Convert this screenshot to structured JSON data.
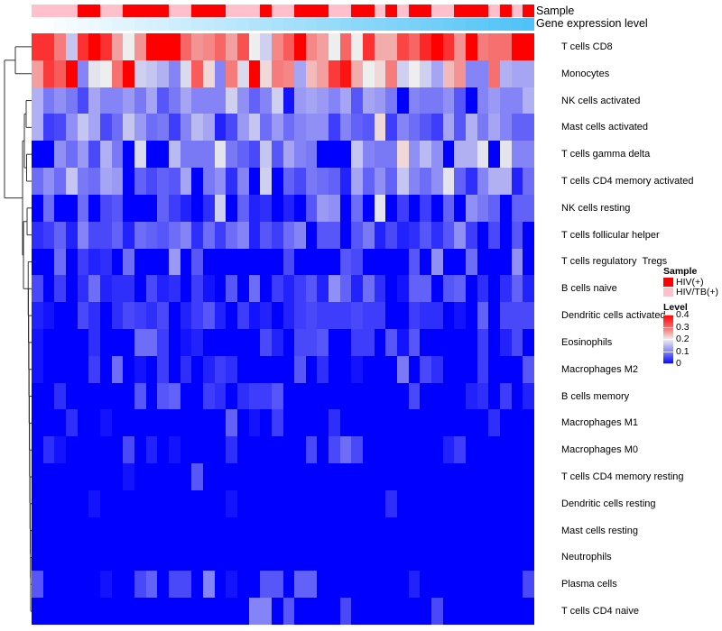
{
  "chart_data": {
    "type": "heatmap",
    "title": "",
    "annotation_labels": {
      "sample": "Sample",
      "gene_expression": "Gene expression level"
    },
    "samples": [
      "HIV/TB(+)",
      "HIV/TB(+)",
      "HIV/TB(+)",
      "HIV/TB(+)",
      "HIV(+)",
      "HIV(+)",
      "HIV/TB(+)",
      "HIV/TB(+)",
      "HIV(+)",
      "HIV(+)",
      "HIV(+)",
      "HIV(+)",
      "HIV/TB(+)",
      "HIV/TB(+)",
      "HIV(+)",
      "HIV(+)",
      "HIV(+)",
      "HIV/TB(+)",
      "HIV/TB(+)",
      "HIV/TB(+)",
      "HIV(+)",
      "HIV/TB(+)",
      "HIV/TB(+)",
      "HIV(+)",
      "HIV(+)",
      "HIV(+)",
      "HIV/TB(+)",
      "HIV/TB(+)",
      "HIV(+)",
      "HIV(+)",
      "HIV/TB(+)",
      "HIV(+)",
      "HIV/TB(+)",
      "HIV(+)",
      "HIV(+)",
      "HIV/TB(+)",
      "HIV/TB(+)",
      "HIV(+)",
      "HIV(+)",
      "HIV(+)",
      "HIV/TB(+)",
      "HIV(+)",
      "HIV/TB(+)",
      "HIV(+)"
    ],
    "gene_expression_level_relative": "increasing from low (white) at left to high (sky blue) at right",
    "rows": [
      "T cells CD8",
      "Monocytes",
      "NK cells activated",
      "Mast cells activated",
      "T cells gamma delta",
      "T cells CD4 memory activated",
      "NK cells resting",
      "T cells follicular helper",
      "T cells regulatory  Tregs",
      "B cells naive",
      "Dendritic cells activated",
      "Eosinophils",
      "Macrophages M2",
      "B cells memory",
      "Macrophages M1",
      "Macrophages M0",
      "T cells CD4 memory resting",
      "Dendritic cells resting",
      "Mast cells resting",
      "Neutrophils",
      "Plasma cells",
      "T cells CD4 naive"
    ],
    "values": [
      [
        0.35,
        0.35,
        0.28,
        0.16,
        0.35,
        0.42,
        0.35,
        0.25,
        0.2,
        0.26,
        0.45,
        0.45,
        0.42,
        0.3,
        0.26,
        0.27,
        0.3,
        0.25,
        0.32,
        0.2,
        0.17,
        0.27,
        0.31,
        0.45,
        0.27,
        0.25,
        0.2,
        0.3,
        0.2,
        0.35,
        0.24,
        0.24,
        0.33,
        0.3,
        0.36,
        0.45,
        0.35,
        0.26,
        0.45,
        0.28,
        0.29,
        0.29,
        0.45,
        0.45
      ],
      [
        0.25,
        0.34,
        0.31,
        0.45,
        0.1,
        0.19,
        0.2,
        0.29,
        0.45,
        0.17,
        0.16,
        0.14,
        0.1,
        0.18,
        0.31,
        0.21,
        0.1,
        0.28,
        0.18,
        0.45,
        0.21,
        0.28,
        0.27,
        0.13,
        0.23,
        0.25,
        0.34,
        0.38,
        0.24,
        0.2,
        0.21,
        0.28,
        0.17,
        0.2,
        0.17,
        0.13,
        0.23,
        0.26,
        0.1,
        0.1,
        0.29,
        0.14,
        0.13,
        0.13
      ],
      [
        0.14,
        0.09,
        0.11,
        0.09,
        0.05,
        0.13,
        0.1,
        0.1,
        0.12,
        0.09,
        0.13,
        0.06,
        0.09,
        0.13,
        0.1,
        0.1,
        0.1,
        0.17,
        0.11,
        0.07,
        0.1,
        0.17,
        0.01,
        0.12,
        0.13,
        0.12,
        0.1,
        0.13,
        0.06,
        0.13,
        0.12,
        0.09,
        0.0,
        0.1,
        0.09,
        0.09,
        0.11,
        0.06,
        0.0,
        0.1,
        0.12,
        0.1,
        0.1,
        0.14
      ],
      [
        0.14,
        0.04,
        0.05,
        0.11,
        0.16,
        0.13,
        0.05,
        0.08,
        0.16,
        0.12,
        0.08,
        0.09,
        0.04,
        0.1,
        0.15,
        0.13,
        0.02,
        0.05,
        0.12,
        0.16,
        0.08,
        0.12,
        0.08,
        0.1,
        0.11,
        0.11,
        0.04,
        0.1,
        0.07,
        0.06,
        0.21,
        0.04,
        0.1,
        0.08,
        0.06,
        0.04,
        0.13,
        0.06,
        0.14,
        0.09,
        0.13,
        0.1,
        0.07,
        0.07
      ],
      [
        0,
        0,
        0.11,
        0.08,
        0.12,
        0.05,
        0.14,
        0.09,
        0,
        0.18,
        0,
        0,
        0.15,
        0.09,
        0.09,
        0.09,
        0.19,
        0.09,
        0.07,
        0.05,
        0.16,
        0.06,
        0.13,
        0.1,
        0.09,
        0,
        0,
        0,
        0.16,
        0.1,
        0.09,
        0.09,
        0.21,
        0.11,
        0.15,
        0.11,
        0,
        0.14,
        0.14,
        0.19,
        0,
        0.19,
        0.1,
        0.1
      ],
      [
        0.08,
        0.11,
        0.08,
        0.16,
        0.09,
        0.08,
        0.13,
        0.12,
        0,
        0.07,
        0.05,
        0.07,
        0.06,
        0.13,
        0,
        0.09,
        0.11,
        0.03,
        0.1,
        0,
        0.17,
        0,
        0.07,
        0.05,
        0.09,
        0.08,
        0.07,
        0.02,
        0.13,
        0.07,
        0.11,
        0.07,
        0.16,
        0.1,
        0.08,
        0.11,
        0.19,
        0.07,
        0.03,
        0.1,
        0.14,
        0.14,
        0.02,
        0.08
      ],
      [
        0,
        0.08,
        0,
        0,
        0.08,
        0,
        0.05,
        0.06,
        0,
        0,
        0,
        0.07,
        0.04,
        0.02,
        0,
        0.03,
        0.17,
        0,
        0.07,
        0.02,
        0.03,
        0,
        0.02,
        0,
        0.06,
        0.12,
        0.11,
        0,
        0.08,
        0,
        0.19,
        0,
        0.04,
        0,
        0.04,
        0,
        0.07,
        0,
        0.11,
        0.09,
        0.07,
        0,
        0.07,
        0.07
      ],
      [
        0.03,
        0.04,
        0.07,
        0.02,
        0.1,
        0.05,
        0.05,
        0.07,
        0.02,
        0.08,
        0.07,
        0.06,
        0.08,
        0.1,
        0.03,
        0.08,
        0.04,
        0.08,
        0.1,
        0.02,
        0.06,
        0.04,
        0.08,
        0.1,
        0,
        0.06,
        0.06,
        0,
        0.06,
        0.09,
        0.02,
        0.05,
        0.02,
        0.03,
        0.06,
        0.03,
        0.06,
        0.11,
        0.04,
        0,
        0.05,
        0,
        0.06,
        0
      ],
      [
        0,
        0,
        0.08,
        0,
        0.04,
        0.02,
        0.03,
        0,
        0.08,
        0,
        0,
        0,
        0.12,
        0,
        0.06,
        0,
        0,
        0,
        0,
        0,
        0,
        0,
        0.05,
        0,
        0,
        0,
        0,
        0.06,
        0.05,
        0,
        0,
        0,
        0,
        0.06,
        0,
        0.11,
        0,
        0,
        0.08,
        0,
        0,
        0,
        0.11,
        0
      ],
      [
        0.05,
        0,
        0.04,
        0,
        0.03,
        0.08,
        0.02,
        0.03,
        0.03,
        0,
        0.05,
        0.02,
        0.03,
        0,
        0.04,
        0.01,
        0,
        0.06,
        0,
        0.08,
        0,
        0.04,
        0.02,
        0.04,
        0.06,
        0.02,
        0.11,
        0.07,
        0.02,
        0.08,
        0.03,
        0,
        0.01,
        0.07,
        0.07,
        0,
        0.06,
        0.07,
        0,
        0.03,
        0,
        0.03,
        0.07,
        0.02
      ],
      [
        0.02,
        0.01,
        0,
        0,
        0.05,
        0.03,
        0,
        0.03,
        0.05,
        0.04,
        0.03,
        0.05,
        0,
        0.02,
        0.04,
        0.06,
        0.02,
        0,
        0.04,
        0.01,
        0.02,
        0,
        0.02,
        0.04,
        0.05,
        0.04,
        0.04,
        0.04,
        0.05,
        0.04,
        0.04,
        0,
        0,
        0.04,
        0.03,
        0.03,
        0,
        0.01,
        0,
        0.07,
        0,
        0.05,
        0.05,
        0.05
      ],
      [
        0.01,
        0,
        0,
        0,
        0,
        0.03,
        0,
        0,
        0,
        0.08,
        0.08,
        0.04,
        0,
        0.01,
        0.02,
        0,
        0,
        0,
        0,
        0,
        0.05,
        0.02,
        0,
        0.05,
        0.05,
        0.06,
        0,
        0,
        0.04,
        0.04,
        0,
        0.06,
        0.01,
        0.06,
        0,
        0,
        0,
        0,
        0,
        0.04,
        0,
        0.02,
        0.05,
        0
      ],
      [
        0.01,
        0,
        0,
        0,
        0,
        0.04,
        0,
        0.08,
        0,
        0.01,
        0,
        0.04,
        0,
        0.03,
        0,
        0.02,
        0.04,
        0.03,
        0,
        0,
        0,
        0,
        0,
        0.06,
        0,
        0.03,
        0,
        0,
        0.01,
        0,
        0,
        0,
        0.09,
        0,
        0.05,
        0.03,
        0,
        0,
        0,
        0.04,
        0,
        0,
        0,
        0.06
      ],
      [
        0,
        0,
        0.03,
        0,
        0,
        0,
        0,
        0,
        0,
        0.06,
        0,
        0.06,
        0.07,
        0,
        0,
        0.04,
        0.03,
        0,
        0.03,
        0.04,
        0.04,
        0.06,
        0,
        0,
        0,
        0,
        0,
        0,
        0,
        0,
        0,
        0,
        0,
        0.05,
        0,
        0,
        0,
        0,
        0.02,
        0.03,
        0,
        0.04,
        0,
        0.02
      ],
      [
        0,
        0,
        0,
        0.03,
        0,
        0,
        0.01,
        0,
        0,
        0,
        0,
        0,
        0,
        0,
        0,
        0,
        0,
        0.07,
        0,
        0.01,
        0,
        0.04,
        0,
        0,
        0,
        0,
        0.03,
        0,
        0,
        0,
        0,
        0,
        0,
        0,
        0,
        0,
        0,
        0,
        0,
        0,
        0.03,
        0,
        0,
        0
      ],
      [
        0,
        0.03,
        0.01,
        0,
        0,
        0,
        0,
        0,
        0.05,
        0,
        0.02,
        0,
        0.01,
        0,
        0,
        0,
        0,
        0.03,
        0,
        0,
        0,
        0,
        0,
        0,
        0.05,
        0,
        0.05,
        0.08,
        0.05,
        0,
        0,
        0,
        0,
        0,
        0,
        0,
        0.02,
        0.04,
        0,
        0,
        0,
        0,
        0,
        0
      ],
      [
        0,
        0,
        0,
        0,
        0,
        0,
        0,
        0,
        0.01,
        0,
        0,
        0,
        0,
        0,
        0.06,
        0,
        0,
        0,
        0,
        0,
        0,
        0,
        0,
        0,
        0,
        0,
        0,
        0,
        0,
        0,
        0,
        0,
        0,
        0,
        0,
        0,
        0,
        0,
        0,
        0,
        0,
        0,
        0,
        0
      ],
      [
        0,
        0,
        0,
        0,
        0,
        0.01,
        0,
        0,
        0,
        0,
        0,
        0,
        0,
        0,
        0,
        0,
        0,
        0.01,
        0,
        0,
        0,
        0,
        0,
        0,
        0,
        0,
        0,
        0,
        0,
        0,
        0,
        0.03,
        0,
        0,
        0,
        0,
        0,
        0,
        0,
        0,
        0,
        0,
        0,
        0
      ],
      [
        0,
        0,
        0,
        0,
        0,
        0,
        0,
        0,
        0,
        0,
        0,
        0,
        0,
        0,
        0,
        0,
        0,
        0,
        0,
        0,
        0,
        0,
        0,
        0,
        0,
        0,
        0,
        0,
        0,
        0,
        0,
        0,
        0,
        0,
        0,
        0,
        0,
        0,
        0,
        0,
        0,
        0,
        0,
        0
      ],
      [
        0,
        0,
        0,
        0,
        0,
        0,
        0,
        0,
        0,
        0,
        0,
        0,
        0,
        0,
        0,
        0,
        0,
        0,
        0,
        0,
        0,
        0,
        0,
        0,
        0,
        0,
        0,
        0,
        0,
        0,
        0,
        0,
        0,
        0,
        0,
        0,
        0,
        0,
        0,
        0,
        0,
        0,
        0,
        0
      ],
      [
        0.06,
        0,
        0,
        0,
        0,
        0,
        0.01,
        0,
        0,
        0.05,
        0.07,
        0,
        0.05,
        0.05,
        0,
        0.1,
        0,
        0.01,
        0,
        0,
        0.06,
        0.06,
        0,
        0.07,
        0.07,
        0,
        0,
        0,
        0,
        0,
        0,
        0,
        0,
        0.02,
        0,
        0,
        0,
        0,
        0,
        0,
        0,
        0,
        0,
        0.05
      ],
      [
        0,
        0,
        0,
        0,
        0,
        0,
        0,
        0,
        0,
        0,
        0,
        0,
        0,
        0,
        0,
        0,
        0,
        0,
        0,
        0.1,
        0.1,
        0,
        0.06,
        0,
        0,
        0,
        0,
        0.05,
        0,
        0,
        0,
        0,
        0,
        0,
        0,
        0.05,
        0,
        0,
        0,
        0,
        0,
        0,
        0,
        0
      ]
    ],
    "color_scale": {
      "min": 0,
      "mid": 0.2,
      "max": 0.4,
      "low": "#0000FF",
      "midcolor": "#EEEEEE",
      "high": "#FF0000"
    },
    "row_dendrogram": "left",
    "legend": {
      "placement": "right",
      "sample_title": "Sample",
      "sample_entries": [
        {
          "label": "HIV(+)",
          "color": "#FF0000"
        },
        {
          "label": "HIV/TB(+)",
          "color": "#FFC0CB"
        }
      ],
      "level_title": "Level",
      "level_ticks": [
        "0.4",
        "0.3",
        "0.2",
        "0.1",
        "0"
      ]
    },
    "gene_expression_colors": {
      "low": "#FFFFFF",
      "high": "#4FC3F7"
    }
  }
}
